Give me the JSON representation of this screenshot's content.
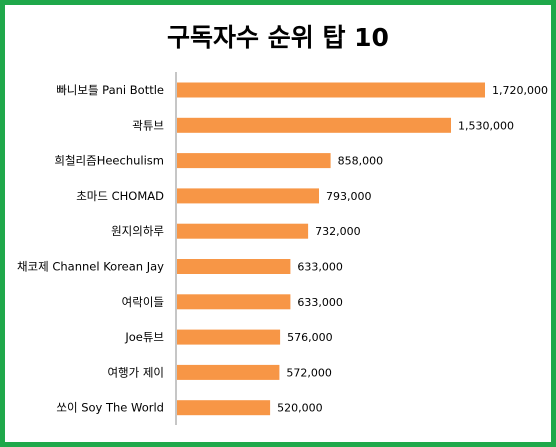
{
  "chart_data": {
    "type": "bar",
    "orientation": "horizontal",
    "title": "구독자수 순위 탑 10",
    "categories": [
      "빠니보틀 Pani Bottle",
      "곽튜브",
      "희철리즘Heechulism",
      "초마드 CHOMAD",
      "원지의하루",
      "채코제 Channel Korean Jay",
      "여락이들",
      "Joe튜브",
      "여행가 제이",
      "쏘이 Soy The World"
    ],
    "values": [
      1720000,
      1530000,
      858000,
      793000,
      732000,
      633000,
      633000,
      576000,
      572000,
      520000
    ],
    "value_labels": [
      "1,720,000",
      "1,530,000",
      "858,000",
      "793,000",
      "732,000",
      "633,000",
      "633,000",
      "576,000",
      "572,000",
      "520,000"
    ],
    "xlim": [
      0,
      1720000
    ],
    "grid": false,
    "legend": "none",
    "bar_color": "#f79646",
    "frame_color": "#1fa84a"
  }
}
